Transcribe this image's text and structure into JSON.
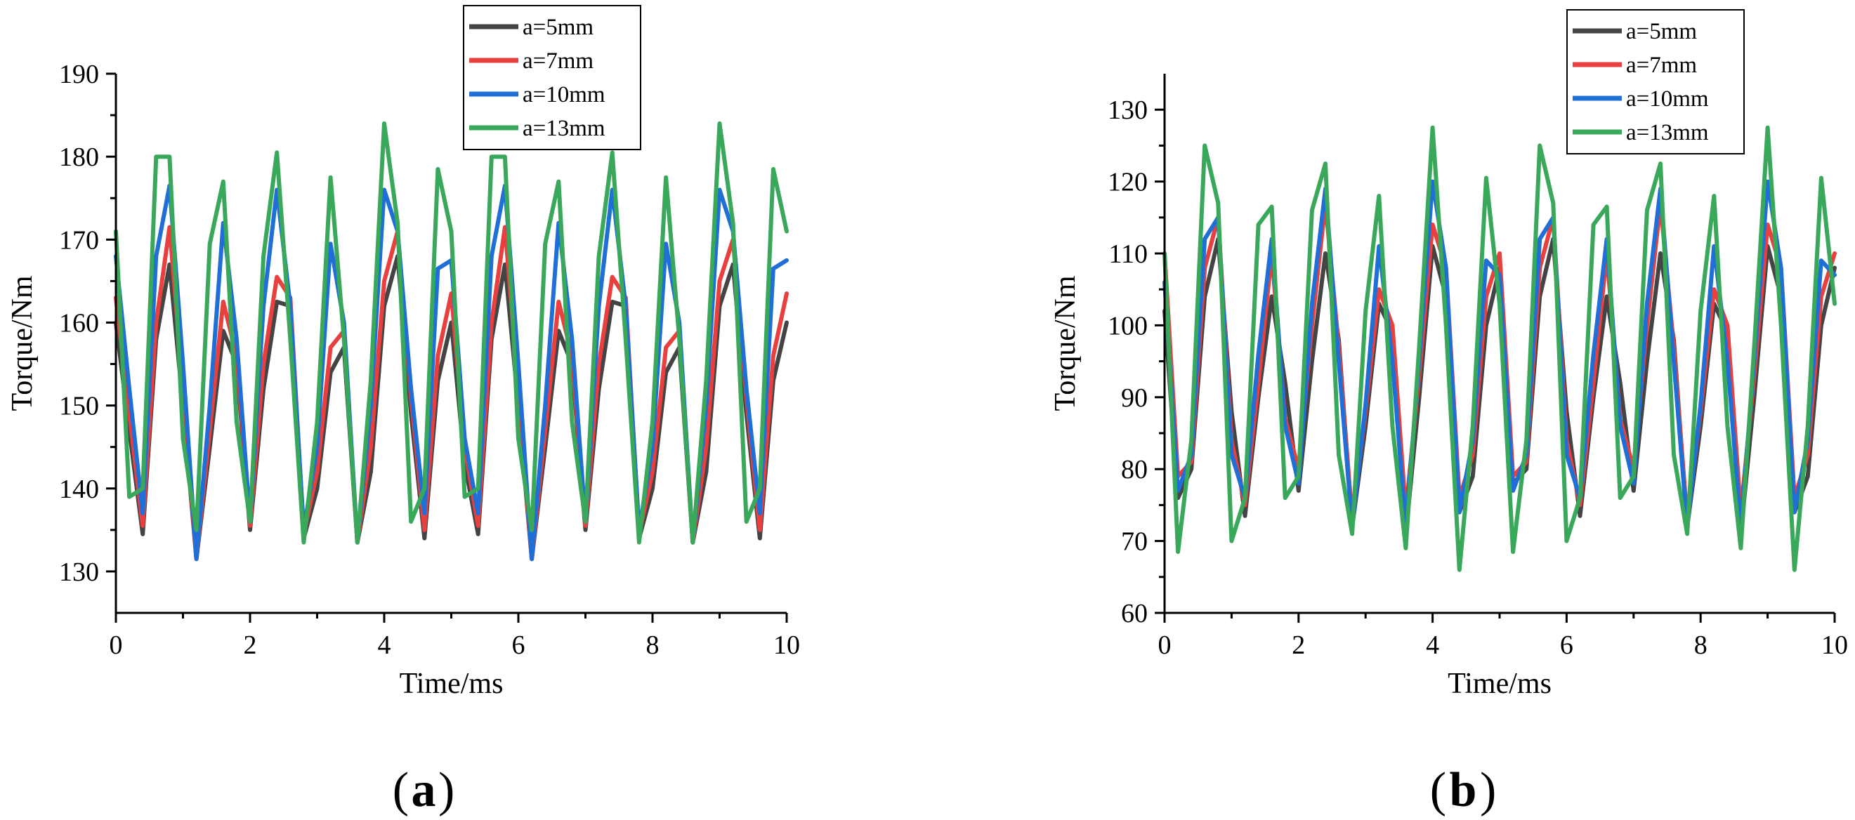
{
  "figure": {
    "panels": [
      {
        "label": "a",
        "open": "(",
        "close": ")"
      },
      {
        "label": "b",
        "open": "(",
        "close": ")"
      }
    ]
  },
  "chart_data": [
    {
      "type": "line",
      "panel": "a",
      "xlabel": "Time/ms",
      "ylabel": "Torque/Nm",
      "xlim": [
        0,
        10
      ],
      "ylim": [
        125,
        190
      ],
      "xticks": [
        0,
        2,
        4,
        6,
        8,
        10
      ],
      "yticks": [
        130,
        140,
        150,
        160,
        170,
        180,
        190
      ],
      "legend_position": "top-center",
      "x": [
        0,
        0.2,
        0.4,
        0.6,
        0.8,
        1.0,
        1.2,
        1.4,
        1.6,
        1.8,
        2.0,
        2.2,
        2.4,
        2.6,
        2.8,
        3.0,
        3.2,
        3.4,
        3.6,
        3.8,
        4.0,
        4.2,
        4.4,
        4.6,
        4.8,
        5.0,
        5.2,
        5.4,
        5.6,
        5.8,
        6.0,
        6.2,
        6.4,
        6.6,
        6.8,
        7.0,
        7.2,
        7.4,
        7.6,
        7.8,
        8.0,
        8.2,
        8.4,
        8.6,
        8.8,
        9.0,
        9.2,
        9.4,
        9.6,
        9.8,
        10.0
      ],
      "series": [
        {
          "name": "a=5mm",
          "color": "#444444",
          "values": [
            160,
            147,
            134.5,
            158,
            167,
            150,
            131.5,
            145,
            159,
            155,
            135,
            152,
            162.5,
            162,
            134,
            140,
            154,
            157,
            133.5,
            142,
            162,
            168,
            149,
            134,
            153,
            160,
            143,
            134.5,
            158,
            167,
            150,
            131.5,
            145,
            159,
            155,
            135,
            152,
            162.5,
            162,
            134,
            140,
            154,
            157,
            133.5,
            142,
            162,
            167,
            149,
            134,
            153,
            160
          ]
        },
        {
          "name": "a=7mm",
          "color": "#e8403f",
          "values": [
            163,
            149,
            135.5,
            160,
            171.5,
            152,
            131.5,
            147,
            162.5,
            156,
            135.5,
            155,
            165.5,
            163,
            134.5,
            142,
            157,
            159,
            133.5,
            145,
            165,
            171,
            151,
            135,
            156,
            163.5,
            145,
            135.5,
            160,
            171.5,
            152,
            131.5,
            147,
            162.5,
            156,
            135.5,
            155,
            165.5,
            163,
            134.5,
            142,
            157,
            159,
            133.5,
            145,
            165,
            170,
            151,
            135,
            156,
            163.5
          ]
        },
        {
          "name": "a=10mm",
          "color": "#1f6fd6",
          "values": [
            168,
            152,
            137,
            168,
            176.5,
            155,
            131.5,
            150,
            172,
            158,
            136,
            162,
            176,
            162,
            135,
            145,
            169.5,
            160,
            133.5,
            150,
            176,
            171,
            152,
            137,
            166.5,
            167.5,
            146,
            137,
            168,
            176.5,
            155,
            131.5,
            150,
            172,
            158,
            136,
            162,
            176,
            162,
            135,
            145,
            169.5,
            160,
            133.5,
            150,
            176,
            171,
            152,
            137,
            166.5,
            167.5
          ]
        },
        {
          "name": "a=13mm",
          "color": "#3aa85a",
          "values": [
            171,
            139,
            140,
            180,
            180,
            146,
            135,
            169.5,
            177,
            148,
            136,
            168,
            180.5,
            158,
            133.5,
            148,
            177.5,
            158,
            133.5,
            153,
            184,
            172,
            136,
            140,
            178.5,
            171,
            139,
            140,
            180,
            180,
            146,
            135,
            169.5,
            177,
            148,
            136,
            168,
            180.5,
            158,
            133.5,
            148,
            177.5,
            158,
            133.5,
            153,
            184,
            172,
            136,
            140,
            178.5,
            171
          ]
        }
      ]
    },
    {
      "type": "line",
      "panel": "b",
      "xlabel": "Time/ms",
      "ylabel": "Torque/Nm",
      "xlim": [
        0,
        10
      ],
      "ylim": [
        60,
        135
      ],
      "xticks": [
        0,
        2,
        4,
        6,
        8,
        10
      ],
      "yticks": [
        60,
        70,
        80,
        90,
        100,
        110,
        120,
        130
      ],
      "legend_position": "top-right",
      "x": [
        0,
        0.2,
        0.4,
        0.6,
        0.8,
        1.0,
        1.2,
        1.4,
        1.6,
        1.8,
        2.0,
        2.2,
        2.4,
        2.6,
        2.8,
        3.0,
        3.2,
        3.4,
        3.6,
        3.8,
        4.0,
        4.2,
        4.4,
        4.6,
        4.8,
        5.0,
        5.2,
        5.4,
        5.6,
        5.8,
        6.0,
        6.2,
        6.4,
        6.6,
        6.8,
        7.0,
        7.2,
        7.4,
        7.6,
        7.8,
        8.0,
        8.2,
        8.4,
        8.6,
        8.8,
        9.0,
        9.2,
        9.4,
        9.6,
        9.8,
        10.0
      ],
      "series": [
        {
          "name": "a=5mm",
          "color": "#444444",
          "values": [
            102,
            76,
            80,
            104,
            112,
            88,
            73.5,
            90,
            104,
            92,
            77,
            95,
            110,
            98,
            72,
            86,
            103,
            99,
            71,
            90,
            111,
            104,
            74,
            79,
            100,
            108,
            78,
            80,
            104,
            112,
            88,
            73.5,
            90,
            104,
            92,
            77,
            95,
            110,
            98,
            72,
            86,
            103,
            99,
            71,
            90,
            111,
            104,
            74,
            79,
            100,
            108
          ]
        },
        {
          "name": "a=7mm",
          "color": "#e8403f",
          "values": [
            110,
            79,
            81,
            108,
            115,
            84,
            75,
            92,
            110,
            87,
            80,
            100,
            117,
            97,
            73,
            88,
            105,
            100,
            74,
            93,
            114,
            108,
            76,
            82,
            104,
            110,
            79,
            81,
            108,
            115,
            84,
            75,
            92,
            110,
            87,
            80,
            100,
            117,
            97,
            73,
            88,
            105,
            100,
            74,
            93,
            114,
            108,
            76,
            82,
            104,
            110
          ]
        },
        {
          "name": "a=10mm",
          "color": "#1f6fd6",
          "values": [
            106,
            77,
            82,
            112,
            115,
            82,
            76,
            96,
            112,
            86,
            78,
            103,
            119,
            95,
            72,
            89,
            111,
            95,
            72,
            95,
            120,
            108,
            74,
            84,
            109,
            107,
            77,
            82,
            112,
            115,
            82,
            76,
            96,
            112,
            86,
            78,
            103,
            119,
            95,
            72,
            89,
            111,
            95,
            72,
            95,
            120,
            108,
            74,
            84,
            109,
            107
          ]
        },
        {
          "name": "a=13mm",
          "color": "#3aa85a",
          "values": [
            110,
            68.5,
            84,
            125,
            117,
            70,
            76,
            114,
            116.5,
            76,
            79,
            116,
            122.5,
            82,
            71,
            102,
            118,
            86,
            69,
            97,
            127.5,
            100,
            66,
            86,
            120.5,
            103,
            68.5,
            84,
            125,
            117,
            70,
            76,
            114,
            116.5,
            76,
            79,
            116,
            122.5,
            82,
            71,
            102,
            118,
            86,
            69,
            97,
            127.5,
            100,
            66,
            86,
            120.5,
            103
          ]
        }
      ]
    }
  ]
}
